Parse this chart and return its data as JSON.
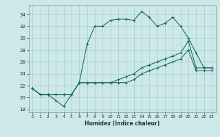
{
  "xlabel": "Humidex (Indice chaleur)",
  "ylabel": "",
  "bg_color": "#cce8e8",
  "grid_color": "#aacccc",
  "line_color": "#1a6b6b",
  "xlim": [
    -0.5,
    23.5
  ],
  "ylim": [
    17.5,
    35.5
  ],
  "xticks": [
    0,
    1,
    2,
    3,
    4,
    5,
    6,
    7,
    8,
    9,
    10,
    11,
    12,
    13,
    14,
    15,
    16,
    17,
    18,
    19,
    20,
    21,
    22,
    23
  ],
  "yticks": [
    18,
    20,
    22,
    24,
    26,
    28,
    30,
    32,
    34
  ],
  "series": [
    [
      21.5,
      20.5,
      20.5,
      19.5,
      18.5,
      20.5,
      22.5,
      29.0,
      32.0,
      32.0,
      33.0,
      33.2,
      33.2,
      33.0,
      34.5,
      33.5,
      32.0,
      32.5,
      33.5,
      32.0,
      30.0,
      27.5,
      25.0,
      25.0
    ],
    [
      21.5,
      20.5,
      20.5,
      20.5,
      20.5,
      20.5,
      22.5,
      22.5,
      22.5,
      22.5,
      22.5,
      23.0,
      23.5,
      24.0,
      25.0,
      25.5,
      26.0,
      26.5,
      27.0,
      27.5,
      29.5,
      25.0,
      25.0,
      25.0
    ],
    [
      21.5,
      20.5,
      20.5,
      20.5,
      20.5,
      20.5,
      22.5,
      22.5,
      22.5,
      22.5,
      22.5,
      22.5,
      22.5,
      23.0,
      24.0,
      24.5,
      25.0,
      25.5,
      26.0,
      26.5,
      28.0,
      24.5,
      24.5,
      24.5
    ]
  ]
}
